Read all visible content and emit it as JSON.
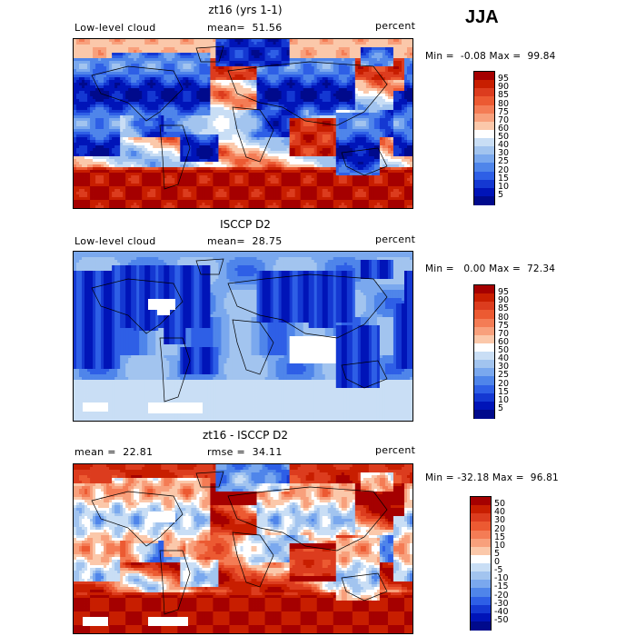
{
  "season": "JJA",
  "panels": [
    {
      "title": "zt16 (yrs 1-1)",
      "left_label": "Low-level cloud",
      "mid_label": "mean=  51.56",
      "right_label": "percent",
      "minmax": "Min =  -0.08 Max =  99.84",
      "colorbar_labels": [
        "95",
        "90",
        "85",
        "80",
        "75",
        "70",
        "60",
        "50",
        "40",
        "30",
        "25",
        "20",
        "15",
        "10",
        "5"
      ],
      "colors": [
        "#a50000",
        "#c81e00",
        "#dc3c1e",
        "#ec5a32",
        "#f47c55",
        "#f8a07c",
        "#fbc8aa",
        "#ffffff",
        "#c9def5",
        "#a2c4ef",
        "#7aa8ee",
        "#4f85ea",
        "#2e5fe6",
        "#1438d2",
        "#0014b8",
        "#000a8c"
      ]
    },
    {
      "title": "ISCCP D2",
      "left_label": "Low-level cloud",
      "mid_label": "mean=  28.75",
      "right_label": "percent",
      "minmax": "Min =   0.00 Max =  72.34",
      "colorbar_labels": [
        "95",
        "90",
        "85",
        "80",
        "75",
        "70",
        "60",
        "50",
        "40",
        "30",
        "25",
        "20",
        "15",
        "10",
        "5"
      ],
      "colors": [
        "#a50000",
        "#c81e00",
        "#dc3c1e",
        "#ec5a32",
        "#f47c55",
        "#f8a07c",
        "#fbc8aa",
        "#ffffff",
        "#c9def5",
        "#a2c4ef",
        "#7aa8ee",
        "#4f85ea",
        "#2e5fe6",
        "#1438d2",
        "#0014b8",
        "#000a8c"
      ]
    },
    {
      "title": "zt16 - ISCCP D2",
      "left_label": "mean =  22.81",
      "mid_label": "rmse =  34.11",
      "right_label": "percent",
      "minmax": "Min = -32.18 Max =  96.81",
      "colorbar_labels": [
        "50",
        "40",
        "30",
        "20",
        "15",
        "10",
        "5",
        "0",
        "-5",
        "-10",
        "-15",
        "-20",
        "-30",
        "-40",
        "-50"
      ],
      "colors": [
        "#a50000",
        "#c81e00",
        "#dc3c1e",
        "#ec5a32",
        "#f47c55",
        "#f8a07c",
        "#fbc8aa",
        "#ffffff",
        "#c9def5",
        "#a2c4ef",
        "#7aa8ee",
        "#4f85ea",
        "#2e5fe6",
        "#1438d2",
        "#0014b8",
        "#000a8c"
      ]
    }
  ],
  "chart_data": [
    {
      "type": "heatmap",
      "title": "zt16 (yrs 1-1)",
      "subtitle": "Low-level cloud",
      "units": "percent",
      "mean": 51.56,
      "min": -0.08,
      "max": 99.84,
      "contour_levels": [
        5,
        10,
        15,
        20,
        25,
        30,
        40,
        50,
        60,
        70,
        75,
        80,
        85,
        90,
        95
      ],
      "season": "JJA",
      "projection": "cylindrical equidistant (global)"
    },
    {
      "type": "heatmap",
      "title": "ISCCP D2",
      "subtitle": "Low-level cloud",
      "units": "percent",
      "mean": 28.75,
      "min": 0.0,
      "max": 72.34,
      "contour_levels": [
        5,
        10,
        15,
        20,
        25,
        30,
        40,
        50,
        60,
        70,
        75,
        80,
        85,
        90,
        95
      ],
      "season": "JJA",
      "projection": "cylindrical equidistant (global)"
    },
    {
      "type": "heatmap",
      "title": "zt16 - ISCCP D2",
      "units": "percent",
      "mean": 22.81,
      "rmse": 34.11,
      "min": -32.18,
      "max": 96.81,
      "contour_levels": [
        -50,
        -40,
        -30,
        -20,
        -15,
        -10,
        -5,
        0,
        5,
        10,
        15,
        20,
        30,
        40,
        50
      ],
      "season": "JJA",
      "projection": "cylindrical equidistant (global)"
    }
  ]
}
